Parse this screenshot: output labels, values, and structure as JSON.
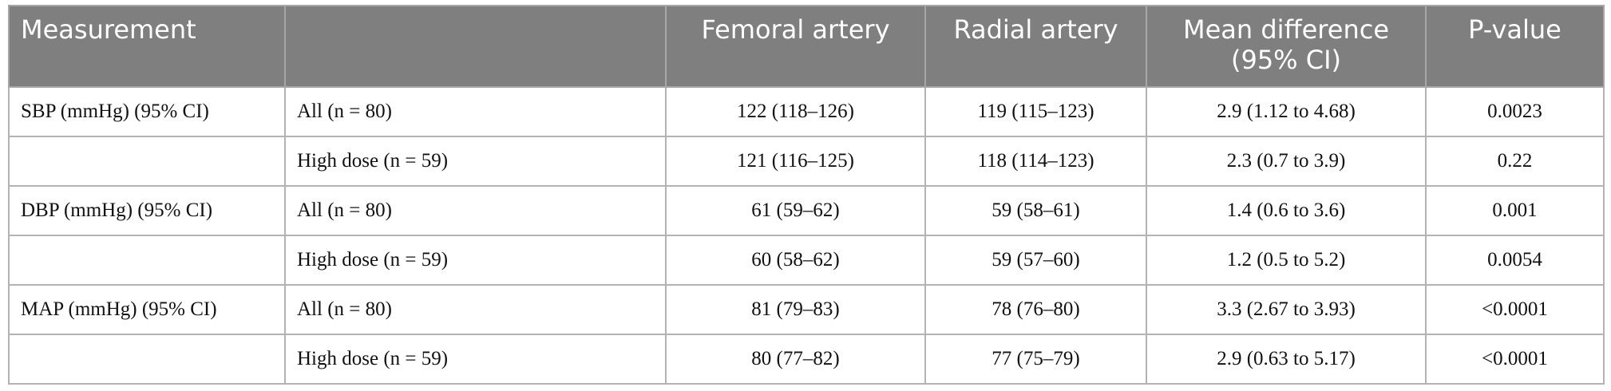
{
  "table": {
    "header": [
      "Measurement",
      null,
      "Femoral artery",
      "Radial artery",
      "Mean difference (95% CI)",
      "P-value"
    ],
    "rows": [
      [
        "SBP (mmHg) (95% CI)",
        "All (n = 80)",
        "122 (118–126)",
        "119 (115–123)",
        "2.9 (1.12 to 4.68)",
        "0.0023"
      ],
      [
        null,
        "High dose (n = 59)",
        "121 (116–125)",
        "118 (114–123)",
        "2.3 (0.7 to 3.9)",
        "0.22"
      ],
      [
        "DBP (mmHg) (95% CI)",
        "All (n = 80)",
        "61 (59–62)",
        "59 (58–61)",
        "1.4 (0.6 to 3.6)",
        "0.001"
      ],
      [
        null,
        "High dose (n = 59)",
        "60 (58–62)",
        "59 (57–60)",
        "1.2 (0.5 to 5.2)",
        "0.0054"
      ],
      [
        "MAP (mmHg) (95% CI)",
        "All (n = 80)",
        "81 (79–83)",
        "78 (76–80)",
        "3.3 (2.67 to 3.93)",
        "<0.0001"
      ],
      [
        null,
        "High dose (n = 59)",
        "80 (77–82)",
        "77 (75–79)",
        "2.9 (0.63 to 5.17)",
        "<0.0001"
      ]
    ]
  }
}
